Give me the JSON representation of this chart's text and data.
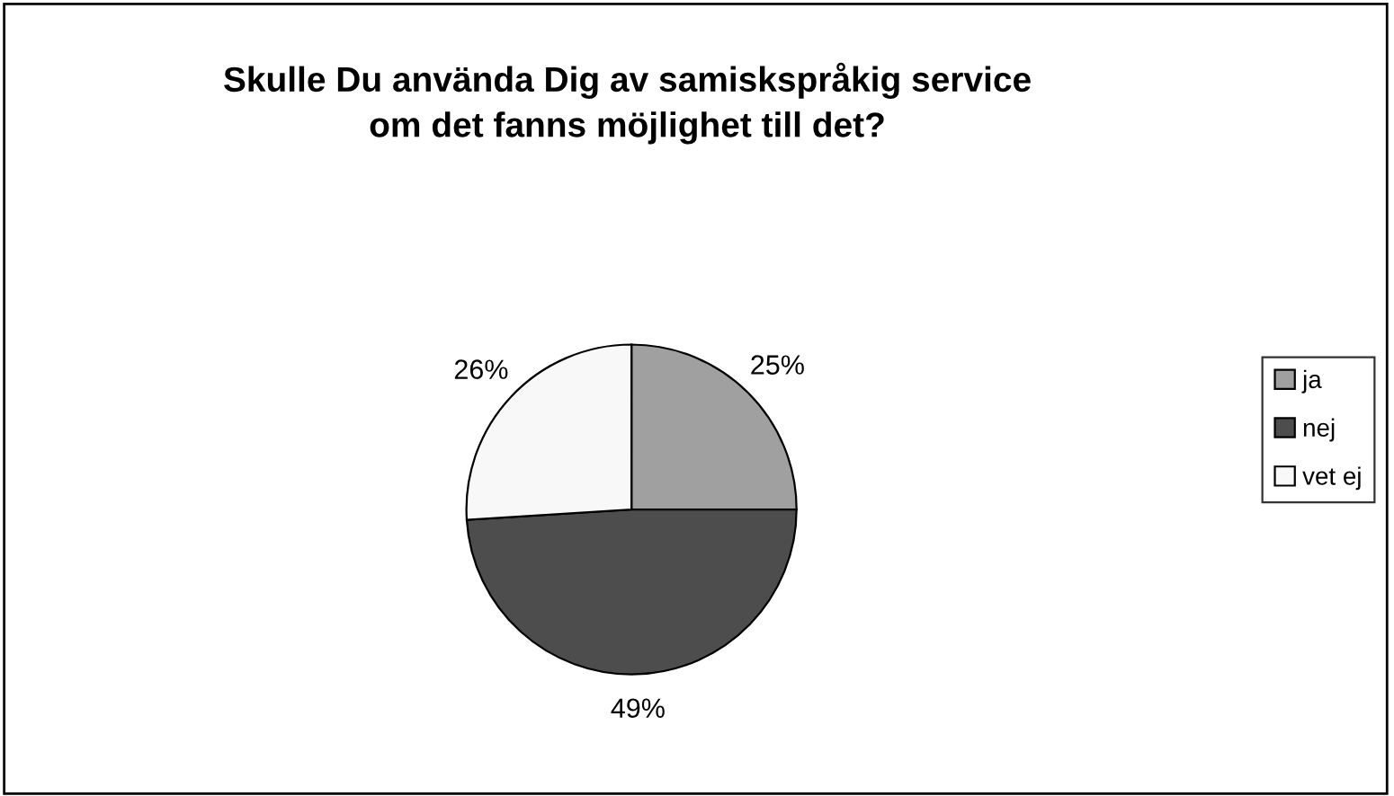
{
  "chart_data": {
    "type": "pie",
    "title": "Skulle Du använda Dig av samiskspråkig service\nom det fanns möjlighet till det?",
    "categories": [
      "ja",
      "nej",
      "vet ej"
    ],
    "values": [
      25,
      49,
      26
    ],
    "colors": [
      "#a0a0a0",
      "#4d4d4d",
      "#f8f8f8"
    ],
    "value_labels": [
      "25%",
      "49%",
      "26%"
    ],
    "legend": "right"
  }
}
